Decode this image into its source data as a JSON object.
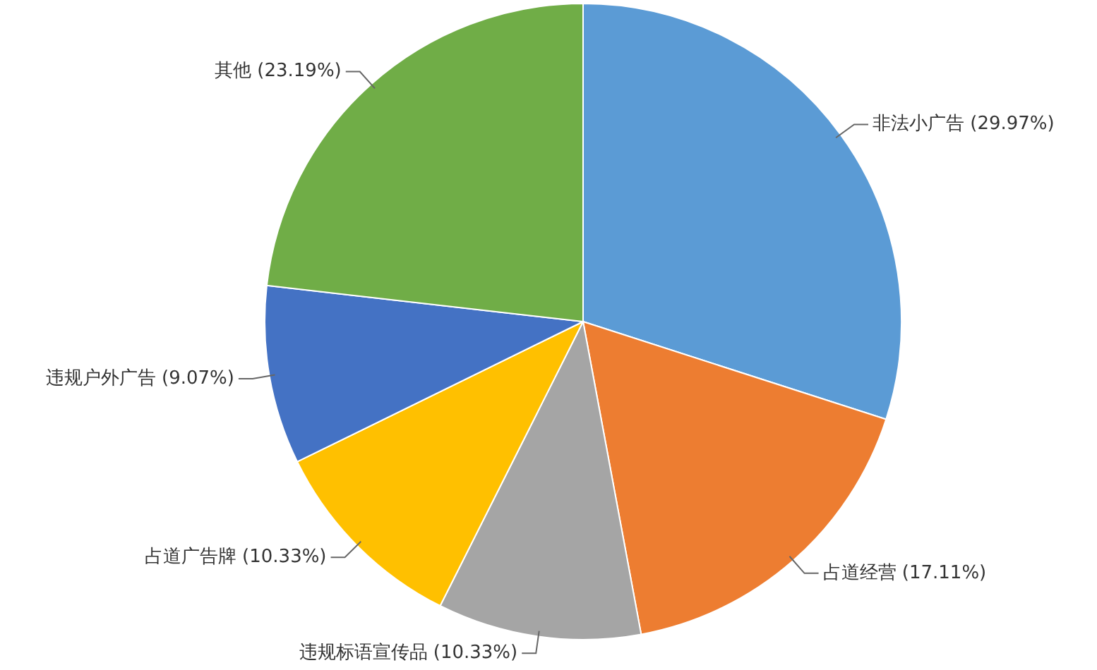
{
  "chart_data": {
    "type": "pie",
    "categories": [
      "非法小广告",
      "占道经营",
      "违规标语宣传品",
      "占道广告牌",
      "违规户外广告",
      "其他"
    ],
    "values": [
      29.97,
      17.11,
      10.33,
      10.33,
      9.07,
      23.19
    ],
    "value_labels": [
      "(29.97%)",
      "(17.11%)",
      "(10.33%)",
      "(10.33%)",
      "(9.07%)",
      "(23.19%)"
    ],
    "colors": [
      "#5b9bd5",
      "#ed7d31",
      "#a5a5a5",
      "#ffc000",
      "#4472c4",
      "#70ad47"
    ],
    "legend": false
  }
}
